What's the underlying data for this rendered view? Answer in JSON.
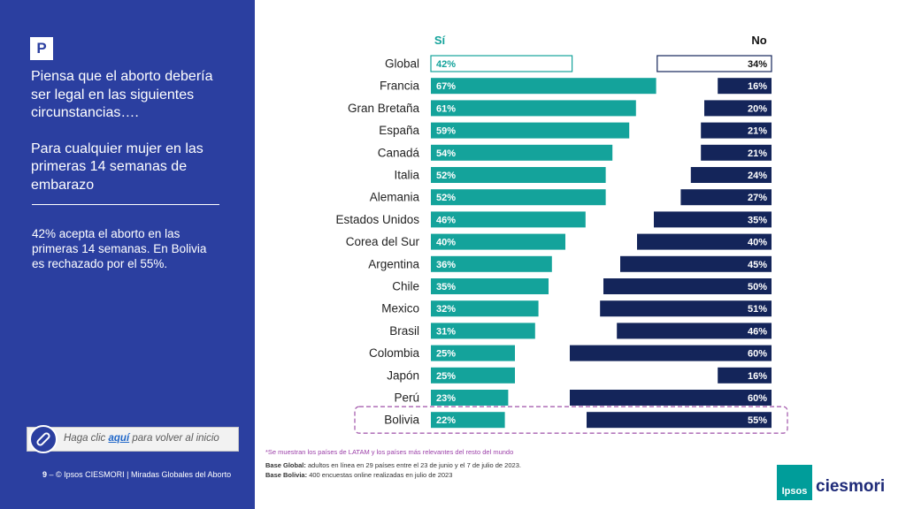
{
  "sidebar": {
    "badge": "P",
    "question": "Piensa que el aborto debería ser legal en las siguientes circunstancias….",
    "subquestion": "Para cualquier mujer en las primeras 14 semanas de embarazo",
    "note": "42% acepta el aborto en las primeras 14 semanas. En Bolivia es rechazado por el 55%.",
    "back_prefix": "Haga clic ",
    "back_link": "aquí",
    "back_suffix": " para volver al inicio",
    "page_number": "9",
    "footer": " – © Ipsos CIESMORI | Miradas Globales del Aborto"
  },
  "colors": {
    "sidebar": "#2b3fa0",
    "si": "#14a39b",
    "no": "#14255a",
    "highlight": "#a862b0"
  },
  "chart_data": {
    "type": "bar",
    "legend": {
      "si": "Sí",
      "no": "No"
    },
    "categories": [
      "Global",
      "Francia",
      "Gran Bretaña",
      "España",
      "Canadá",
      "Italia",
      "Alemania",
      "Estados Unidos",
      "Corea del Sur",
      "Argentina",
      "Chile",
      "Mexico",
      "Brasil",
      "Colombia",
      "Japón",
      "Perú",
      "Bolivia"
    ],
    "series": [
      {
        "name": "Sí",
        "values": [
          42,
          67,
          61,
          59,
          54,
          52,
          52,
          46,
          40,
          36,
          35,
          32,
          31,
          25,
          25,
          23,
          22
        ]
      },
      {
        "name": "No",
        "values": [
          34,
          16,
          20,
          21,
          21,
          24,
          27,
          35,
          40,
          45,
          50,
          51,
          46,
          60,
          16,
          60,
          55
        ]
      }
    ],
    "highlight_category": "Bolivia",
    "outlined_category": "Global"
  },
  "footnotes": {
    "note": "*Se muestran los países de LATAM y los países más relevantes del resto del mundo",
    "base_global_label": "Base Global:",
    "base_global_text": " adultos en línea en 29 países entre el 23 de junio y el 7 de julio de 2023.",
    "base_bolivia_label": "Base Bolivia:",
    "base_bolivia_text": " 400 encuestas online realizadas en julio de 2023"
  },
  "logo": {
    "box_text": "Ipsos",
    "text": "ciesmori"
  }
}
